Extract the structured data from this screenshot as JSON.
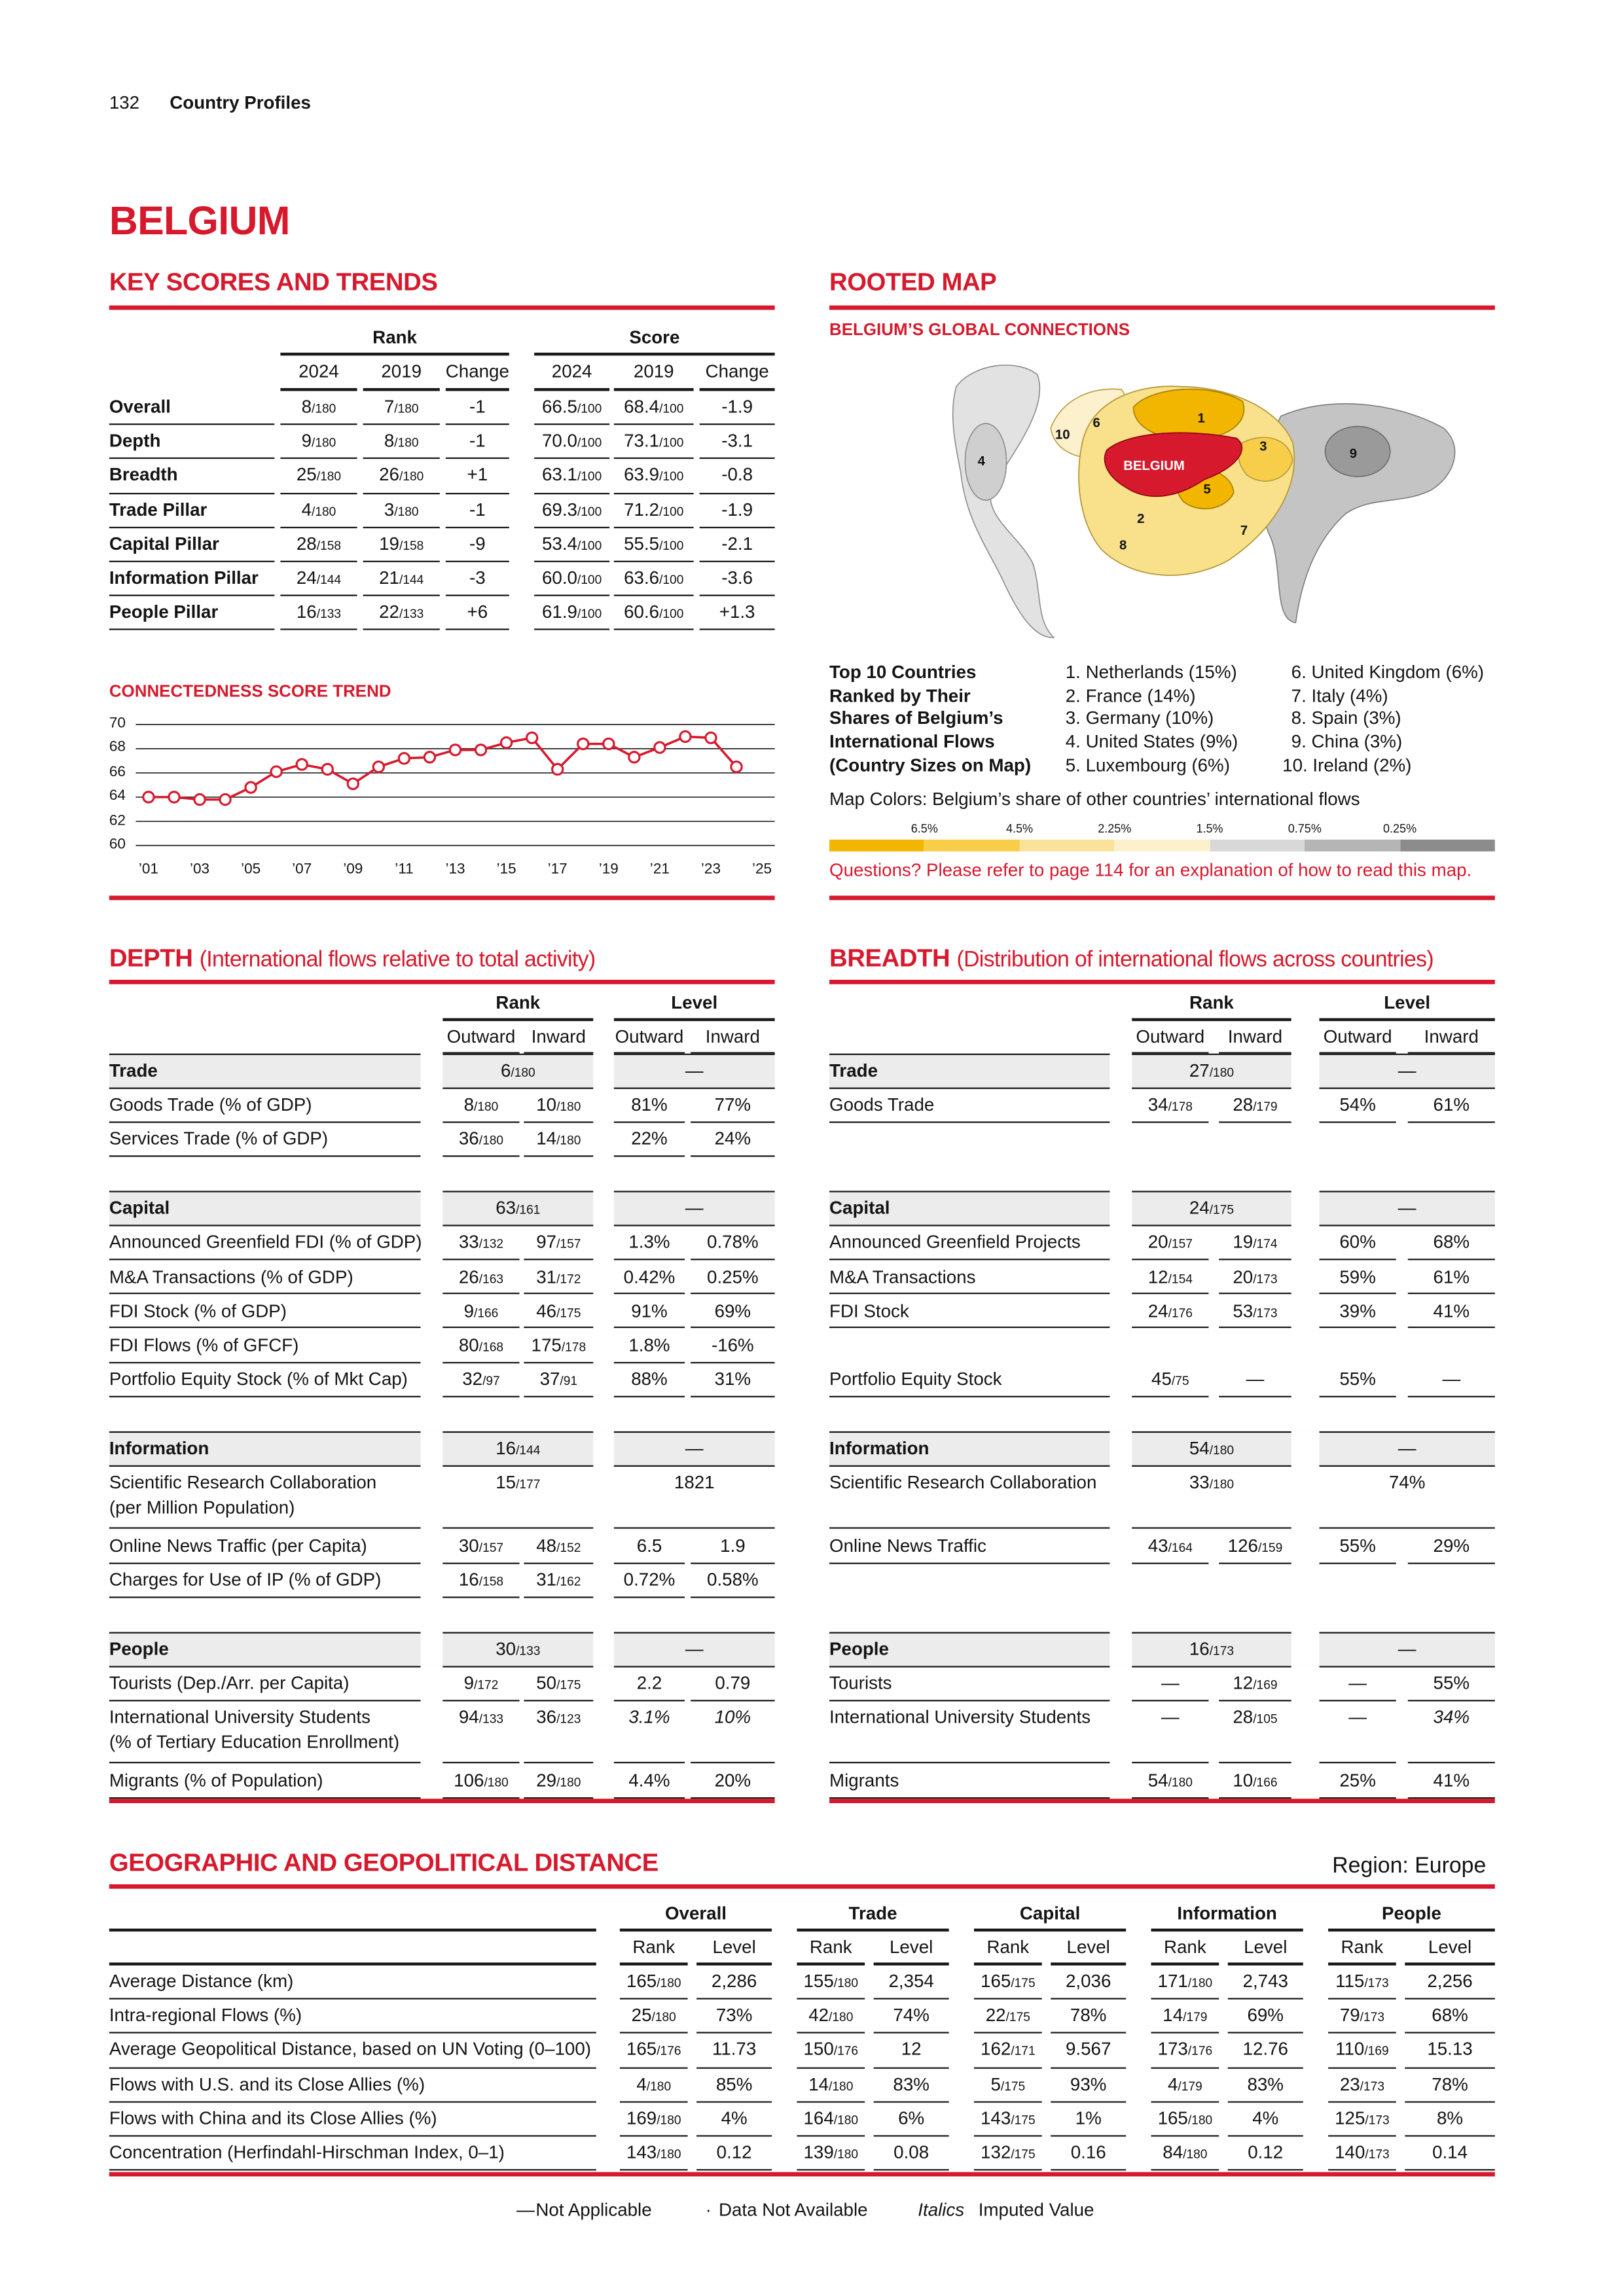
{
  "header": {
    "page_number": "132",
    "section": "Country Profiles"
  },
  "title": "BELGIUM",
  "key_scores": {
    "heading": "KEY SCORES AND TRENDS",
    "group_headers": [
      "Rank",
      "Score"
    ],
    "columns": [
      "2024",
      "2019",
      "Change",
      "2024",
      "2019",
      "Change"
    ],
    "rows": [
      {
        "label": "Overall",
        "cells": [
          "8/180",
          "7/180",
          "-1",
          "66.5/100",
          "68.4/100",
          "-1.9"
        ]
      },
      {
        "label": "Depth",
        "cells": [
          "9/180",
          "8/180",
          "-1",
          "70.0/100",
          "73.1/100",
          "-3.1"
        ]
      },
      {
        "label": "Breadth",
        "cells": [
          "25/180",
          "26/180",
          "+1",
          "63.1/100",
          "63.9/100",
          "-0.8"
        ]
      },
      {
        "label": "Trade Pillar",
        "cells": [
          "4/180",
          "3/180",
          "-1",
          "69.3/100",
          "71.2/100",
          "-1.9"
        ]
      },
      {
        "label": "Capital Pillar",
        "cells": [
          "28/158",
          "19/158",
          "-9",
          "53.4/100",
          "55.5/100",
          "-2.1"
        ]
      },
      {
        "label": "Information Pillar",
        "cells": [
          "24/144",
          "21/144",
          "-3",
          "60.0/100",
          "63.6/100",
          "-3.6"
        ]
      },
      {
        "label": "People Pillar",
        "cells": [
          "16/133",
          "22/133",
          "+6",
          "61.9/100",
          "60.6/100",
          "+1.3"
        ]
      }
    ]
  },
  "chart_data": {
    "type": "line",
    "title": "CONNECTEDNESS SCORE TREND",
    "color": "#d7192d",
    "x": [
      2001,
      2002,
      2003,
      2004,
      2005,
      2006,
      2007,
      2008,
      2009,
      2010,
      2011,
      2012,
      2013,
      2014,
      2015,
      2016,
      2017,
      2018,
      2019,
      2020,
      2021,
      2022,
      2023,
      2024
    ],
    "values": [
      64.0,
      64.0,
      63.8,
      63.8,
      64.8,
      66.1,
      66.7,
      66.3,
      65.1,
      66.5,
      67.2,
      67.3,
      67.9,
      67.9,
      68.5,
      68.9,
      66.3,
      68.4,
      68.4,
      67.3,
      68.1,
      69.0,
      68.9,
      66.5
    ],
    "xlim": [
      2000.5,
      2025.5
    ],
    "ylim": [
      60,
      70
    ],
    "yticks": [
      60,
      62,
      64,
      66,
      68,
      70
    ],
    "xticks": [
      {
        "value": 2001,
        "label": "’01"
      },
      {
        "value": 2003,
        "label": "’03"
      },
      {
        "value": 2005,
        "label": "’05"
      },
      {
        "value": 2007,
        "label": "’07"
      },
      {
        "value": 2009,
        "label": "’09"
      },
      {
        "value": 2011,
        "label": "’11"
      },
      {
        "value": 2013,
        "label": "’13"
      },
      {
        "value": 2015,
        "label": "’15"
      },
      {
        "value": 2017,
        "label": "’17"
      },
      {
        "value": 2019,
        "label": "’19"
      },
      {
        "value": 2021,
        "label": "’21"
      },
      {
        "value": 2023,
        "label": "’23"
      },
      {
        "value": 2025,
        "label": "’25"
      }
    ],
    "grid": true
  },
  "rooted_map": {
    "heading": "ROOTED MAP",
    "subheading": "BELGIUM’S GLOBAL CONNECTIONS",
    "country_label": "BELGIUM",
    "country_numbers": [
      "1",
      "2",
      "3",
      "4",
      "5",
      "6",
      "7",
      "8",
      "9",
      "10"
    ],
    "top10_title": [
      "Top 10 Countries",
      "Ranked by Their",
      "Shares of Belgium’s",
      "International Flows",
      "(Country Sizes on Map)"
    ],
    "top10": [
      "1. Netherlands (15%)",
      "2. France (14%)",
      "3. Germany (10%)",
      "4. United States (9%)",
      "5. Luxembourg (6%)",
      "6. United Kingdom (6%)",
      "7. Italy (4%)",
      "8. Spain (3%)",
      "9. China (3%)",
      "10. Ireland (2%)"
    ],
    "colors_title": "Map Colors: Belgium’s share of other countries’ international flows",
    "color_scale": {
      "labels": [
        "6.5%",
        "4.5%",
        "2.25%",
        "1.5%",
        "0.75%",
        "0.25%"
      ],
      "colors": [
        "#f2b600",
        "#f7cd4a",
        "#fae29a",
        "#fdf0cc",
        "#d8d8d8",
        "#b5b5b5",
        "#8c8c8c"
      ]
    },
    "note": "Questions? Please refer to page 114 for an explanation of how to read this map."
  },
  "depth": {
    "heading": "DEPTH",
    "subtitle": "(International flows relative to total activity)",
    "group_headers": [
      "Rank",
      "Level"
    ],
    "columns": [
      "Outward",
      "Inward",
      "Outward",
      "Inward"
    ],
    "groups": [
      {
        "header": {
          "label": "Trade",
          "cells": [
            "6/180",
            "—"
          ]
        },
        "rows": [
          {
            "label": "Goods Trade (% of GDP)",
            "cells": [
              "8/180",
              "10/180",
              "81%",
              "77%"
            ]
          },
          {
            "label": "Services Trade (% of GDP)",
            "cells": [
              "36/180",
              "14/180",
              "22%",
              "24%"
            ]
          }
        ]
      },
      {
        "header": {
          "label": "Capital",
          "cells": [
            "63/161",
            "—"
          ]
        },
        "rows": [
          {
            "label": "Announced Greenfield FDI (% of GDP)",
            "cells": [
              "33/132",
              "97/157",
              "1.3%",
              "0.78%"
            ]
          },
          {
            "label": "M&A Transactions (% of GDP)",
            "cells": [
              "26/163",
              "31/172",
              "0.42%",
              "0.25%"
            ]
          },
          {
            "label": "FDI Stock (% of GDP)",
            "cells": [
              "9/166",
              "46/175",
              "91%",
              "69%"
            ]
          },
          {
            "label": "FDI Flows (% of GFCF)",
            "cells": [
              "80/168",
              "175/178",
              "1.8%",
              "-16%"
            ]
          },
          {
            "label": "Portfolio Equity Stock (% of Mkt Cap)",
            "cells": [
              "32/97",
              "37/91",
              "88%",
              "31%"
            ]
          }
        ]
      },
      {
        "header": {
          "label": "Information",
          "cells": [
            "16/144",
            "—"
          ]
        },
        "rows": [
          {
            "label": [
              "Scientific Research Collaboration",
              "(per Million Population)"
            ],
            "cells": [
              "15/177",
              "1821"
            ]
          },
          {
            "label": "Online News Traffic (per Capita)",
            "cells": [
              "30/157",
              "48/152",
              "6.5",
              "1.9"
            ]
          },
          {
            "label": "Charges for Use of IP (% of GDP)",
            "cells": [
              "16/158",
              "31/162",
              "0.72%",
              "0.58%"
            ]
          }
        ]
      },
      {
        "header": {
          "label": "People",
          "cells": [
            "30/133",
            "—"
          ]
        },
        "rows": [
          {
            "label": "Tourists (Dep./Arr. per Capita)",
            "cells": [
              "9/172",
              "50/175",
              "2.2",
              "0.79"
            ]
          },
          {
            "label": [
              "International University Students",
              "(% of Tertiary Education Enrollment)"
            ],
            "cells": [
              "94/133",
              "36/123",
              {
                "value": "3.1%",
                "imputed": true
              },
              {
                "value": "10%",
                "imputed": true
              }
            ]
          },
          {
            "label": "Migrants (% of Population)",
            "cells": [
              "106/180",
              "29/180",
              "4.4%",
              "20%"
            ]
          }
        ]
      }
    ]
  },
  "breadth": {
    "heading": "BREADTH",
    "subtitle": "(Distribution of international flows across countries)",
    "group_headers": [
      "Rank",
      "Level"
    ],
    "columns": [
      "Outward",
      "Inward",
      "Outward",
      "Inward"
    ],
    "groups": [
      {
        "header": {
          "label": "Trade",
          "cells": [
            "27/180",
            "—"
          ]
        },
        "rows": [
          {
            "label": "Goods Trade",
            "cells": [
              "34/178",
              "28/179",
              "54%",
              "61%"
            ]
          },
          null
        ]
      },
      {
        "header": {
          "label": "Capital",
          "cells": [
            "24/175",
            "—"
          ]
        },
        "rows": [
          {
            "label": "Announced Greenfield Projects",
            "cells": [
              "20/157",
              "19/174",
              "60%",
              "68%"
            ]
          },
          {
            "label": "M&A Transactions",
            "cells": [
              "12/154",
              "20/173",
              "59%",
              "61%"
            ]
          },
          {
            "label": "FDI Stock",
            "cells": [
              "24/176",
              "53/173",
              "39%",
              "41%"
            ]
          },
          null,
          {
            "label": "Portfolio Equity Stock",
            "cells": [
              "45/75",
              "—",
              "55%",
              "—"
            ]
          }
        ]
      },
      {
        "header": {
          "label": "Information",
          "cells": [
            "54/180",
            "—"
          ]
        },
        "rows": [
          {
            "label": "Scientific Research Collaboration",
            "cells": [
              "33/180",
              "74%"
            ]
          },
          {
            "label": "Online News Traffic",
            "cells": [
              "43/164",
              "126/159",
              "55%",
              "29%"
            ]
          },
          null
        ]
      },
      {
        "header": {
          "label": "People",
          "cells": [
            "16/173",
            "—"
          ]
        },
        "rows": [
          {
            "label": "Tourists",
            "cells": [
              "—",
              "12/169",
              "—",
              "55%"
            ]
          },
          {
            "label": "International University Students",
            "cells": [
              "—",
              "28/105",
              "—",
              {
                "value": "34%",
                "imputed": true
              }
            ]
          },
          {
            "label": "Migrants",
            "cells": [
              "54/180",
              "10/166",
              "25%",
              "41%"
            ]
          }
        ]
      }
    ]
  },
  "geo": {
    "heading": "GEOGRAPHIC AND GEOPOLITICAL DISTANCE",
    "region": "Region: Europe",
    "group_headers": [
      "Overall",
      "Trade",
      "Capital",
      "Information",
      "People"
    ],
    "columns": [
      "Rank",
      "Level"
    ],
    "rows": [
      {
        "label": "Average Distance (km)",
        "cells": [
          "165/180",
          "2,286",
          "155/180",
          "2,354",
          "165/175",
          "2,036",
          "171/180",
          "2,743",
          "115/173",
          "2,256"
        ]
      },
      {
        "label": "Intra-regional Flows (%)",
        "cells": [
          "25/180",
          "73%",
          "42/180",
          "74%",
          "22/175",
          "78%",
          "14/179",
          "69%",
          "79/173",
          "68%"
        ]
      },
      {
        "label": "Average Geopolitical Distance, based on UN Voting (0–100)",
        "cells": [
          "165/176",
          "11.73",
          "150/176",
          "12",
          "162/171",
          "9.567",
          "173/176",
          "12.76",
          "110/169",
          "15.13"
        ]
      },
      {
        "label": "Flows with U.S. and its Close Allies (%)",
        "cells": [
          "4/180",
          "85%",
          "14/180",
          "83%",
          "5/175",
          "93%",
          "4/179",
          "83%",
          "23/173",
          "78%"
        ]
      },
      {
        "label": "Flows with China and its Close Allies (%)",
        "cells": [
          "169/180",
          "4%",
          "164/180",
          "6%",
          "143/175",
          "1%",
          "165/180",
          "4%",
          "125/173",
          "8%"
        ]
      },
      {
        "label": "Concentration (Herfindahl-Hirschman Index, 0–1)",
        "cells": [
          "143/180",
          "0.12",
          "139/180",
          "0.08",
          "132/175",
          "0.16",
          "84/180",
          "0.12",
          "140/173",
          "0.14"
        ]
      }
    ]
  },
  "legend": [
    {
      "symbol": "—",
      "text": "Not Applicable"
    },
    {
      "symbol": "·",
      "text": "Data Not Available"
    },
    {
      "symbol": "Italics",
      "text": "Imputed Value"
    }
  ]
}
